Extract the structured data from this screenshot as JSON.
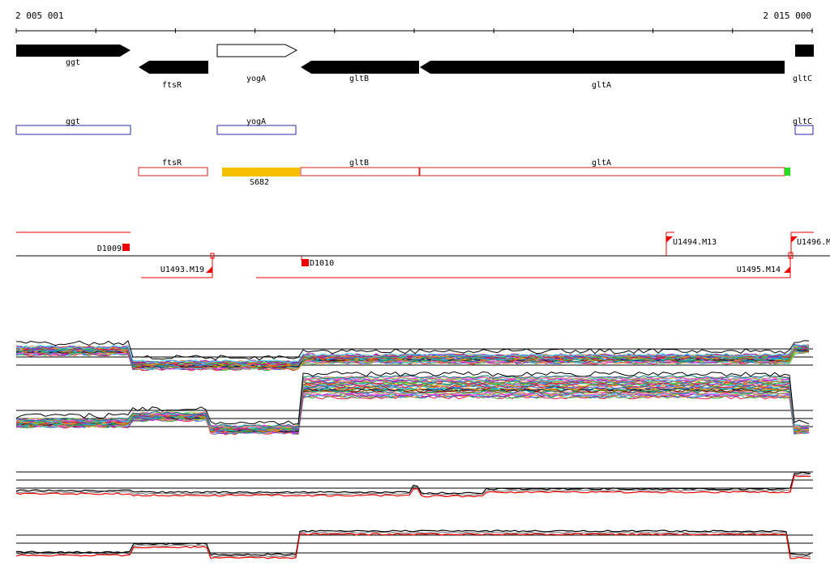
{
  "ruler": {
    "start_label": "2 005 001",
    "end_label": "2 015 000"
  },
  "genes": [
    {
      "name": "ggt",
      "strand": "+"
    },
    {
      "name": "ftsR",
      "strand": "-"
    },
    {
      "name": "yogA",
      "strand": "+",
      "style": "outline"
    },
    {
      "name": "gltB",
      "strand": "-"
    },
    {
      "name": "gltA",
      "strand": "-"
    },
    {
      "name": "gltC",
      "strand": "+"
    }
  ],
  "forward_features": [
    "ggt",
    "yogA",
    "gltC"
  ],
  "reverse_features": [
    "ftsR",
    "gltB",
    "gltA"
  ],
  "reverse_extra_feature": "S682",
  "promoters": {
    "upper": [
      "D1009",
      "U1494.M13",
      "U1496.M"
    ],
    "lower": [
      "U1493.M19",
      "D1010",
      "U1495.M14"
    ]
  },
  "colors": {
    "gene_fill": "#000000",
    "forward_feature": "#2a2aa8",
    "reverse_feature": "#d02020",
    "reverse_extra": "#f5c000",
    "start_marker": "#22dd22",
    "promoter": "#ee0000",
    "track_red": "#ee0000",
    "track_black": "#000000"
  }
}
